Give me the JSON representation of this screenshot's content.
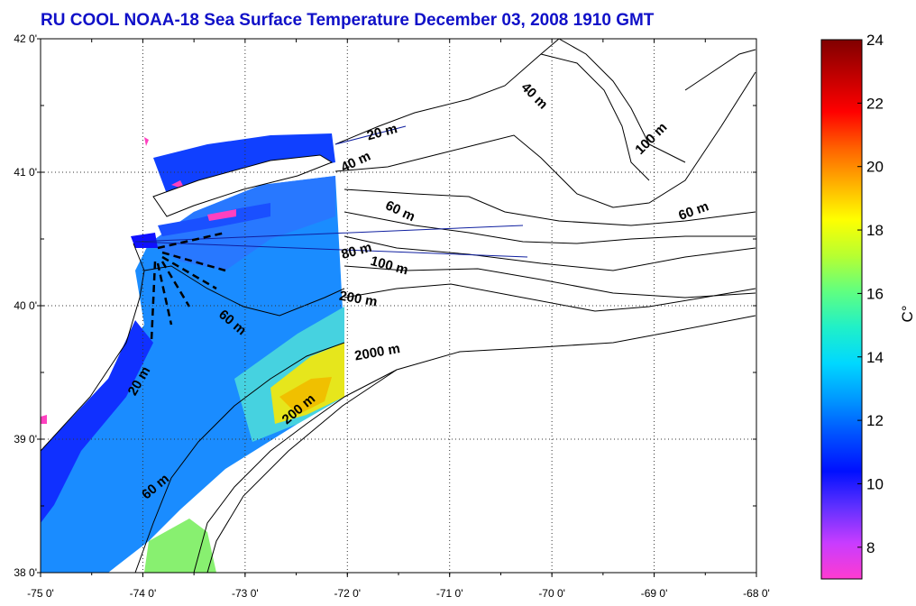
{
  "title": "RU COOL  NOAA-18 Sea Surface Temperature December 03, 2008 1910 GMT",
  "axes": {
    "x_ticks": [
      "-75 0'",
      "-74 0'",
      "-73 0'",
      "-72 0'",
      "-71 0'",
      "-70 0'",
      "-69 0'",
      "-68 0'"
    ],
    "y_ticks": [
      "42 0'",
      "41 0'",
      "40 0'",
      "39 0'",
      "38 0'"
    ],
    "xlim": [
      -75,
      -68
    ],
    "ylim": [
      38,
      42
    ],
    "grid": "dotted"
  },
  "isobath_labels": [
    {
      "text": "20 m",
      "lon": -71.65,
      "lat": 41.27,
      "rot": -15
    },
    {
      "text": "40 m",
      "lon": -71.9,
      "lat": 41.05,
      "rot": -25
    },
    {
      "text": "40 m",
      "lon": -70.2,
      "lat": 41.55,
      "rot": 45
    },
    {
      "text": "100 m",
      "lon": -69.0,
      "lat": 41.23,
      "rot": -45
    },
    {
      "text": "60 m",
      "lon": -71.5,
      "lat": 40.68,
      "rot": 25
    },
    {
      "text": "60 m",
      "lon": -68.6,
      "lat": 40.68,
      "rot": -20
    },
    {
      "text": "80 m",
      "lon": -71.9,
      "lat": 40.38,
      "rot": -15
    },
    {
      "text": "100 m",
      "lon": -71.6,
      "lat": 40.27,
      "rot": 15
    },
    {
      "text": "200 m",
      "lon": -71.9,
      "lat": 40.02,
      "rot": 10
    },
    {
      "text": "2000 m",
      "lon": -71.7,
      "lat": 39.62,
      "rot": -10
    },
    {
      "text": "60 m",
      "lon": -73.15,
      "lat": 39.85,
      "rot": 40
    },
    {
      "text": "20 m",
      "lon": -74.0,
      "lat": 39.42,
      "rot": -60
    },
    {
      "text": "200 m",
      "lon": -72.45,
      "lat": 39.2,
      "rot": -40
    },
    {
      "text": "60 m",
      "lon": -73.85,
      "lat": 38.62,
      "rot": -40
    }
  ],
  "colorbar": {
    "ticks": [
      "24",
      "22",
      "20",
      "18",
      "16",
      "14",
      "12",
      "10",
      "8"
    ],
    "min": 7,
    "max": 24,
    "unit": "C°",
    "colors": [
      "#ff3bd0",
      "#c83cff",
      "#6030ff",
      "#0010ff",
      "#0050ff",
      "#0098ff",
      "#00d8ff",
      "#20f0c8",
      "#60ff80",
      "#b8ff30",
      "#ffff00",
      "#ffb000",
      "#ff6000",
      "#ff0000",
      "#c00000",
      "#800000"
    ]
  }
}
